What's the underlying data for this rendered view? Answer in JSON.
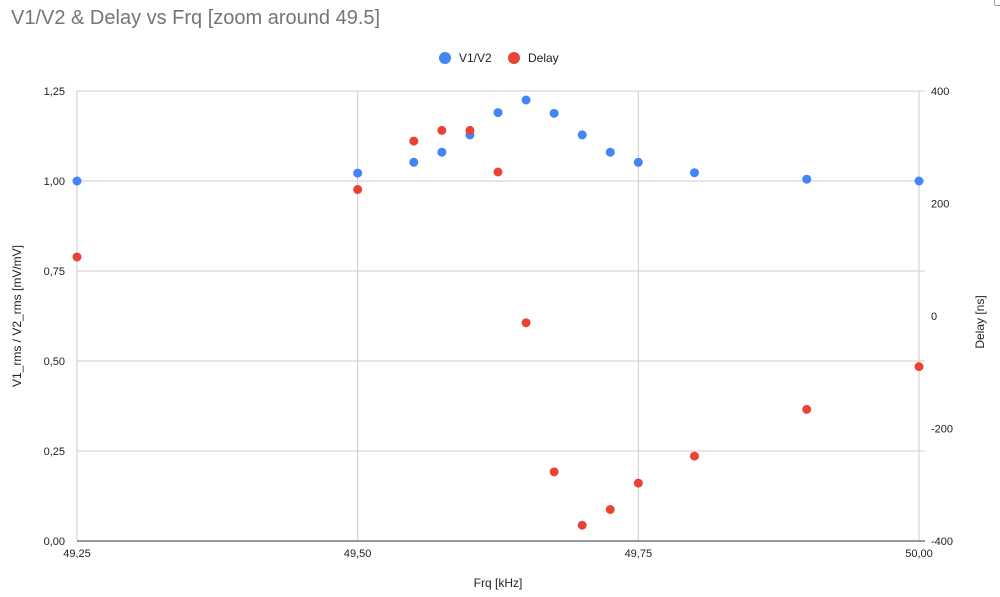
{
  "chart_data": {
    "type": "scatter",
    "title": "V1/V2 & Delay vs Frq [zoom around 49.5]",
    "xlabel": "Frq [kHz]",
    "ylabel_left": "V1_rms / V2_rms [mV/mV]",
    "ylabel_right": "Delay [ns]",
    "xlim": [
      49.25,
      50.0
    ],
    "ylim_left": [
      0,
      1.25
    ],
    "ylim_right": [
      -400,
      400
    ],
    "x_ticks": [
      "49,25",
      "49,50",
      "49,75",
      "50,00"
    ],
    "x_tick_values": [
      49.25,
      49.5,
      49.75,
      50.0
    ],
    "y_left_ticks": [
      "0,00",
      "0,25",
      "0,50",
      "0,75",
      "1,00",
      "1,25"
    ],
    "y_left_tick_values": [
      0,
      0.25,
      0.5,
      0.75,
      1.0,
      1.25
    ],
    "y_right_ticks": [
      "-400",
      "-200",
      "0",
      "200",
      "400"
    ],
    "y_right_tick_values": [
      -400,
      -200,
      0,
      200,
      400
    ],
    "grid": true,
    "legend_position": "top-center",
    "series": [
      {
        "name": "V1/V2",
        "axis": "left",
        "color": "#4285f4",
        "points": [
          [
            49.25,
            1.0
          ],
          [
            49.5,
            1.022
          ],
          [
            49.55,
            1.052
          ],
          [
            49.575,
            1.08
          ],
          [
            49.6,
            1.128
          ],
          [
            49.625,
            1.19
          ],
          [
            49.65,
            1.225
          ],
          [
            49.675,
            1.188
          ],
          [
            49.7,
            1.128
          ],
          [
            49.725,
            1.08
          ],
          [
            49.75,
            1.052
          ],
          [
            49.8,
            1.023
          ],
          [
            49.9,
            1.005
          ],
          [
            50.0,
            1.0
          ]
        ]
      },
      {
        "name": "Delay",
        "axis": "right",
        "color": "#ea4335",
        "points": [
          [
            49.25,
            105
          ],
          [
            49.5,
            225
          ],
          [
            49.55,
            311
          ],
          [
            49.575,
            330
          ],
          [
            49.6,
            330
          ],
          [
            49.625,
            256
          ],
          [
            49.65,
            -12
          ],
          [
            49.675,
            -277
          ],
          [
            49.7,
            -372
          ],
          [
            49.725,
            -344
          ],
          [
            49.75,
            -297
          ],
          [
            49.8,
            -249
          ],
          [
            49.9,
            -166
          ],
          [
            50.0,
            -90
          ]
        ]
      }
    ]
  }
}
